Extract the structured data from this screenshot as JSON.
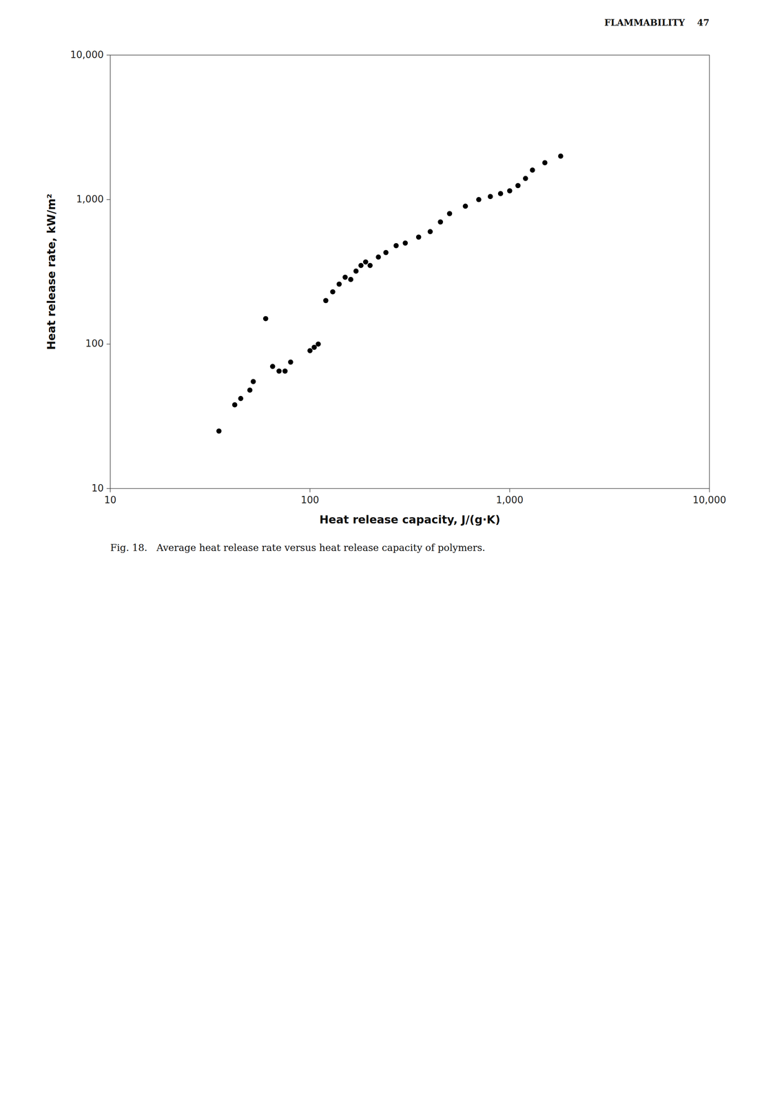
{
  "chart_data": {
    "type": "scatter",
    "title": "Fig. 18.   Average heat release rate versus heat release capacity of polymers.",
    "annotations": [
      "FLAMMABILITY    47"
    ],
    "x_label": "Heat release capacity, J/(g·K)",
    "y_label": "Heat release rate, kW/m²",
    "x": [
      35,
      42,
      45,
      50,
      52,
      60,
      65,
      70,
      75,
      80,
      100,
      105,
      110,
      120,
      130,
      140,
      150,
      160,
      170,
      180,
      190,
      200,
      220,
      240,
      270,
      300,
      350,
      400,
      450,
      500,
      600,
      700,
      800,
      900,
      1000,
      1100,
      1200,
      1300,
      1500,
      1800
    ],
    "values": [
      25,
      38,
      42,
      48,
      55,
      150,
      70,
      65,
      65,
      75,
      90,
      95,
      100,
      200,
      230,
      260,
      290,
      280,
      320,
      350,
      370,
      350,
      400,
      430,
      480,
      500,
      550,
      600,
      700,
      800,
      900,
      1000,
      1050,
      1100,
      1150,
      1250,
      1400,
      1600,
      1800,
      2000
    ],
    "color": "#000000",
    "marker": "circle",
    "log": true,
    "grid": false,
    "xlim": [
      10,
      10000
    ],
    "ylim": [
      10,
      10000
    ],
    "xticks": [
      10,
      100,
      {
        "value": 1000,
        "label": "1,000"
      },
      {
        "value": 10000,
        "label": "10,000"
      }
    ],
    "yticks": [
      10,
      100,
      {
        "value": 1000,
        "label": "1,000"
      },
      {
        "value": 10000,
        "label": "10,000"
      }
    ]
  }
}
